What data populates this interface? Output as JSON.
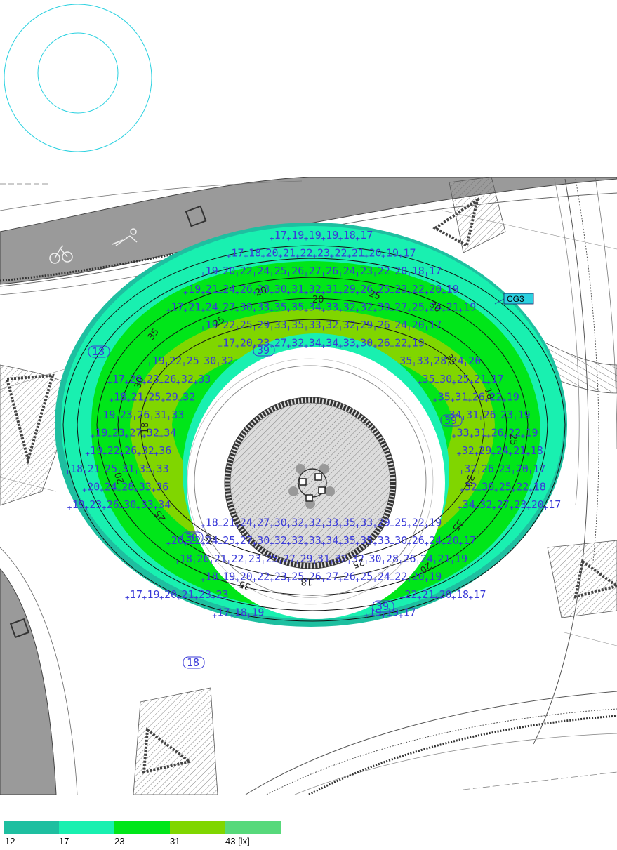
{
  "luminaire_label": "CG3",
  "legend": {
    "items": [
      {
        "value": "12",
        "color": "#1ebfa0"
      },
      {
        "value": "17",
        "color": "#19f0b0"
      },
      {
        "value": "23",
        "color": "#00e619"
      },
      {
        "value": "31",
        "color": "#80d600"
      },
      {
        "value": "43 [lx]",
        "color": "#57d97b"
      }
    ]
  },
  "contour_labels": [
    "20",
    "25",
    "30",
    "35",
    "18",
    "25",
    "30",
    "35",
    "20",
    "25",
    "18",
    "35",
    "35",
    "25",
    "20",
    "18",
    "30",
    "35",
    "25",
    "20"
  ],
  "boxed_values": [
    "18",
    "39",
    "39",
    "39",
    "39",
    "18"
  ],
  "grid_rows": [
    [
      "17",
      "19",
      "19",
      "19",
      "18",
      "17"
    ],
    [
      "17",
      "18",
      "20",
      "21",
      "22",
      "23",
      "22",
      "21",
      "20",
      "19",
      "17"
    ],
    [
      "19",
      "20",
      "22",
      "24",
      "25",
      "26",
      "27",
      "26",
      "24",
      "23",
      "22",
      "20",
      "18",
      "17"
    ],
    [
      "19",
      "21",
      "24",
      "26",
      "28",
      "30",
      "31",
      "32",
      "31",
      "29",
      "26",
      "25",
      "23",
      "22",
      "20",
      "19"
    ],
    [
      "17",
      "21",
      "24",
      "27",
      "30",
      "33",
      "35",
      "35",
      "34",
      "33",
      "32",
      "32",
      "30",
      "27",
      "25",
      "24",
      "21",
      "19"
    ],
    [
      "19",
      "22",
      "25",
      "29",
      "33",
      "35",
      "33",
      "32",
      "32",
      "29",
      "26",
      "24",
      "20",
      "17"
    ],
    [
      "17",
      "20",
      "23",
      "27",
      "32",
      "34",
      "34",
      "33",
      "30",
      "26",
      "22",
      "19"
    ],
    [
      "19",
      "22",
      "25",
      "30",
      "32",
      "35",
      "33",
      "28",
      "24",
      "20"
    ],
    [
      "17",
      "20",
      "23",
      "26",
      "32",
      "33",
      "35",
      "30",
      "25",
      "21",
      "17"
    ],
    [
      "18",
      "21",
      "25",
      "29",
      "32",
      "35",
      "31",
      "26",
      "22",
      "19"
    ],
    [
      "19",
      "23",
      "26",
      "31",
      "33",
      "34",
      "31",
      "26",
      "23",
      "19"
    ],
    [
      "19",
      "23",
      "27",
      "32",
      "34",
      "33",
      "31",
      "26",
      "22",
      "19"
    ],
    [
      "19",
      "22",
      "26",
      "32",
      "36",
      "32",
      "29",
      "24",
      "21",
      "18"
    ],
    [
      "18",
      "21",
      "25",
      "31",
      "35",
      "33",
      "32",
      "26",
      "23",
      "20",
      "17"
    ],
    [
      "20",
      "24",
      "28",
      "33",
      "36",
      "32",
      "30",
      "25",
      "22",
      "18"
    ],
    [
      "19",
      "23",
      "26",
      "30",
      "33",
      "34",
      "34",
      "32",
      "27",
      "23",
      "20",
      "17"
    ],
    [
      "18",
      "21",
      "24",
      "27",
      "30",
      "32",
      "32",
      "33",
      "35",
      "33",
      "29",
      "25",
      "22",
      "19"
    ],
    [
      "20",
      "22",
      "24",
      "25",
      "27",
      "30",
      "32",
      "32",
      "33",
      "34",
      "35",
      "35",
      "33",
      "30",
      "26",
      "24",
      "20",
      "17"
    ],
    [
      "18",
      "20",
      "21",
      "22",
      "23",
      "25",
      "27",
      "29",
      "31",
      "32",
      "32",
      "30",
      "28",
      "26",
      "24",
      "21",
      "19"
    ],
    [
      "18",
      "19",
      "20",
      "22",
      "23",
      "25",
      "26",
      "27",
      "26",
      "25",
      "24",
      "22",
      "20",
      "19"
    ],
    [
      "17",
      "19",
      "20",
      "21",
      "23",
      "23",
      "22",
      "21",
      "20",
      "18",
      "17"
    ],
    [
      "17",
      "18",
      "19",
      "19",
      "19",
      "17"
    ]
  ]
}
